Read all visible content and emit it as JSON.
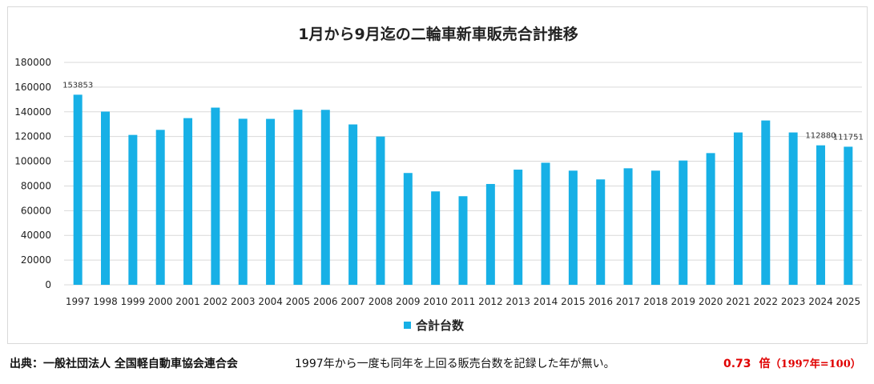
{
  "chart_data": {
    "type": "bar",
    "title": "1月から9月迄の二輪車新車販売合計推移",
    "categories": [
      "1997",
      "1998",
      "1999",
      "2000",
      "2001",
      "2002",
      "2003",
      "2004",
      "2005",
      "2006",
      "2007",
      "2008",
      "2009",
      "2010",
      "2011",
      "2012",
      "2013",
      "2014",
      "2015",
      "2016",
      "2017",
      "2018",
      "2019",
      "2020",
      "2021",
      "2022",
      "2023",
      "2024",
      "2025"
    ],
    "series": [
      {
        "name": "合計台数",
        "color": "#17b0e6",
        "values": [
          153853,
          140200,
          121300,
          125400,
          134900,
          143400,
          134400,
          134300,
          141700,
          141600,
          129800,
          120000,
          90500,
          75600,
          71700,
          81600,
          93200,
          98800,
          92400,
          85300,
          94300,
          92400,
          100600,
          106600,
          123300,
          133000,
          123300,
          112880,
          111751
        ]
      }
    ],
    "data_labels": [
      "153853",
      "112880",
      "111751"
    ],
    "yticks": [
      "0",
      "20000",
      "40000",
      "60000",
      "80000",
      "100000",
      "120000",
      "140000",
      "160000",
      "180000"
    ],
    "ylim": [
      0,
      180000
    ],
    "xlabel": "",
    "ylabel": "",
    "grid": true,
    "legend_position": "bottom"
  },
  "footer": {
    "source": "出典：一般社団法人 全国軽自動車協会連合会",
    "note": "1997年から一度も同年を上回る販売台数を記録した年が無い。",
    "ratio_value": "0.73",
    "ratio_unit": "倍",
    "ratio_base": "（1997年=100）"
  }
}
